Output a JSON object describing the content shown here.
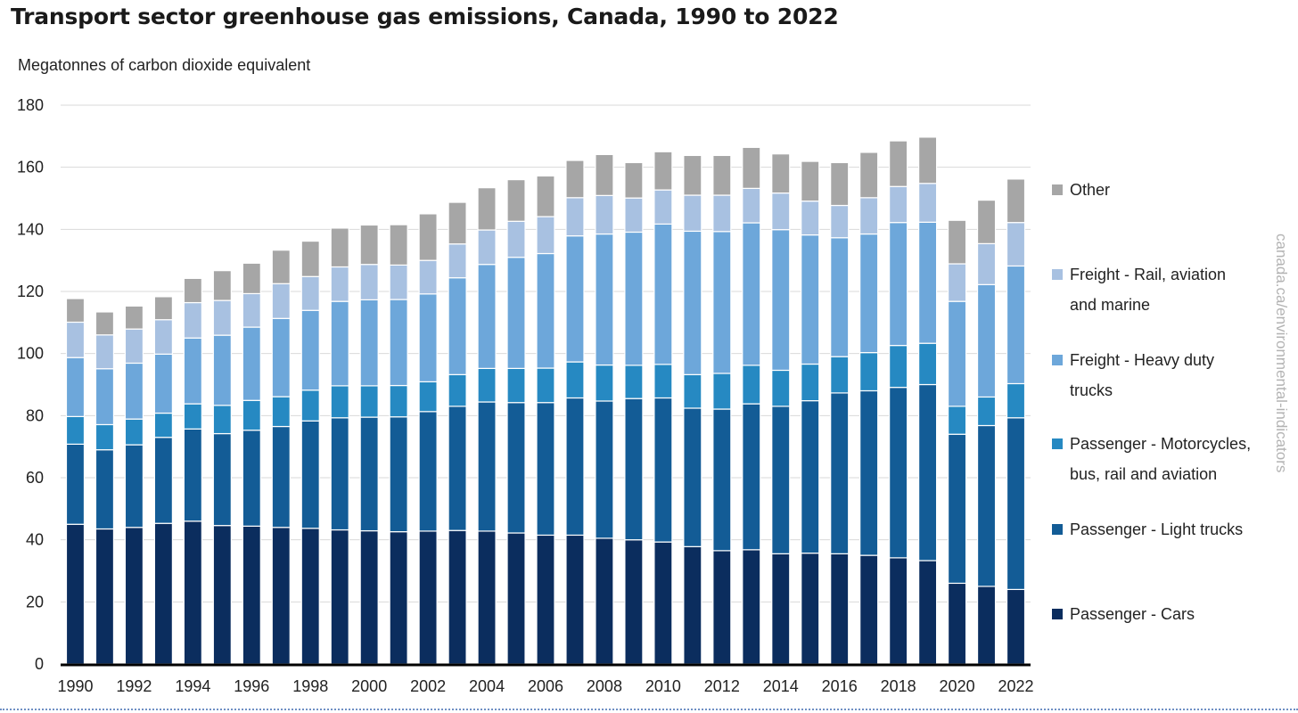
{
  "title": "Transport sector greenhouse gas emissions, Canada, 1990 to 2022",
  "watermark": "canada.ca/environmental-indicators",
  "chart_data": {
    "type": "bar",
    "stacked": true,
    "ylabel": "Megatonnes of carbon dioxide equivalent",
    "ylim": [
      0,
      180
    ],
    "yticks": [
      0,
      20,
      40,
      60,
      80,
      100,
      120,
      140,
      160,
      180
    ],
    "grid": true,
    "legend_position": "right",
    "categories": [
      "1990",
      "1991",
      "1992",
      "1993",
      "1994",
      "1995",
      "1996",
      "1997",
      "1998",
      "1999",
      "2000",
      "2001",
      "2002",
      "2003",
      "2004",
      "2005",
      "2006",
      "2007",
      "2008",
      "2009",
      "2010",
      "2011",
      "2012",
      "2013",
      "2014",
      "2015",
      "2016",
      "2017",
      "2018",
      "2019",
      "2020",
      "2021",
      "2022"
    ],
    "xtick_labels": [
      "1990",
      "1992",
      "1994",
      "1996",
      "1998",
      "2000",
      "2002",
      "2004",
      "2006",
      "2008",
      "2010",
      "2012",
      "2014",
      "2016",
      "2018",
      "2020",
      "2022"
    ],
    "series": [
      {
        "name": "Passenger - Cars",
        "color": "#0b2d5e",
        "values": [
          45,
          43.5,
          44,
          45.3,
          46,
          44.6,
          44.4,
          44,
          43.7,
          43.2,
          42.9,
          42.6,
          42.8,
          43,
          42.8,
          42.2,
          41.5,
          41.5,
          40.5,
          40,
          39.3,
          37.8,
          36.5,
          36.8,
          35.5,
          35.7,
          35.5,
          35,
          34.2,
          33.3,
          26,
          25,
          24
        ]
      },
      {
        "name": "Passenger - Light trucks",
        "color": "#135c96",
        "values": [
          25.8,
          25.5,
          26.6,
          27.7,
          29.7,
          29.6,
          30.9,
          32.5,
          34.6,
          36.1,
          36.6,
          37,
          38.5,
          40,
          41.6,
          42,
          42.7,
          44.2,
          44.2,
          45.5,
          46.4,
          44.6,
          45.6,
          47,
          47.5,
          49.1,
          51.8,
          53,
          54.9,
          56.7,
          48,
          51.8,
          55.3
        ]
      },
      {
        "name": "Passenger - Motorcycles, bus, rail and aviation",
        "color": "#2689c2",
        "values": [
          8.9,
          8.1,
          8.3,
          7.8,
          8.1,
          9.1,
          9.6,
          9.6,
          9.9,
          10.3,
          10.1,
          10.1,
          9.6,
          10.2,
          10.8,
          11,
          11.1,
          11.6,
          11.6,
          10.7,
          10.8,
          10.8,
          11.5,
          12.4,
          11.6,
          11.8,
          11.7,
          12.3,
          13.5,
          13.3,
          9,
          9.2,
          11
        ]
      },
      {
        "name": "Freight - Heavy duty trucks",
        "color": "#6da7da",
        "values": [
          19,
          18,
          18,
          19,
          21.2,
          22.6,
          23.6,
          25.2,
          25.7,
          27.2,
          27.7,
          27.7,
          28.3,
          31.2,
          33.5,
          35.8,
          36.9,
          40.6,
          42.2,
          42.9,
          45.2,
          46.2,
          45.7,
          45.9,
          45.3,
          41.6,
          38.3,
          38.2,
          39.6,
          39,
          33.8,
          36.2,
          37.9
        ]
      },
      {
        "name": "Freight - Rail, aviation and marine",
        "color": "#a8c1e1",
        "values": [
          11.4,
          10.9,
          11,
          11.1,
          11.4,
          11.2,
          10.8,
          11.2,
          10.9,
          11.1,
          11.4,
          11.1,
          10.8,
          10.9,
          11.1,
          11.6,
          11.9,
          12.3,
          12.4,
          11,
          11,
          11.6,
          11.7,
          11.1,
          11.8,
          10.9,
          10.4,
          11.7,
          11.6,
          12.5,
          12.1,
          13.2,
          14
        ]
      },
      {
        "name": "Other",
        "color": "#a6a6a6",
        "values": [
          7.6,
          7.4,
          7.4,
          7.4,
          7.8,
          9.6,
          9.8,
          10.8,
          11.4,
          12.5,
          12.7,
          13,
          15,
          13.4,
          13.6,
          13.4,
          13.1,
          12,
          13.2,
          11.4,
          12.3,
          12.8,
          12.8,
          13.2,
          12.6,
          12.8,
          13.8,
          14.6,
          14.7,
          14.9,
          14,
          14,
          14
        ]
      }
    ]
  }
}
